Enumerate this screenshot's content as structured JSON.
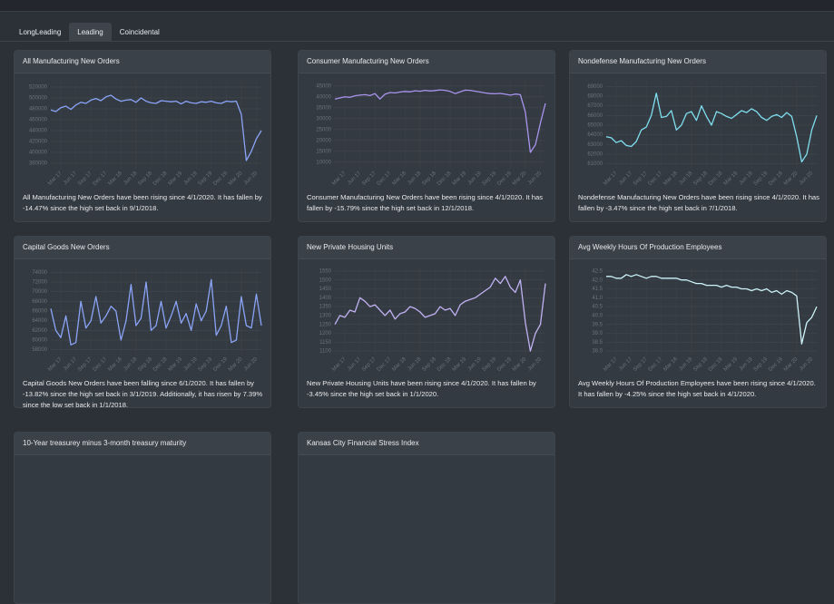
{
  "tabs": [
    "LongLeading",
    "Leading",
    "Coincidental"
  ],
  "chart_data": [
    {
      "type": "line",
      "title": "All Manufacturing New Orders",
      "color": "#8aa4f8",
      "grid": true,
      "description": "All Manufacturing New Orders have been rising since 4/1/2020. It has fallen by -14.47% since the high set back in 9/1/2018.",
      "categories": [
        null,
        null,
        "Mar 17",
        null,
        null,
        "Jun 17",
        null,
        null,
        "Sep 17",
        null,
        null,
        "Dec 17",
        null,
        null,
        "Mar 18",
        null,
        null,
        "Jun 18",
        null,
        null,
        "Sep 18",
        null,
        null,
        "Dec 18",
        null,
        null,
        "Mar 19",
        null,
        null,
        "Jun 19",
        null,
        null,
        "Sep 19",
        null,
        null,
        "Dec 19",
        null,
        null,
        "Mar 20",
        null,
        null,
        "Jun 20",
        null
      ],
      "values": [
        478000,
        475000,
        482000,
        485000,
        479000,
        487000,
        492000,
        490000,
        496000,
        499000,
        495000,
        502000,
        505000,
        498000,
        494000,
        496000,
        497000,
        492000,
        500000,
        494000,
        491000,
        490000,
        495000,
        494000,
        493000,
        494000,
        489000,
        494000,
        491000,
        490000,
        493000,
        492000,
        494000,
        491000,
        490000,
        494000,
        493000,
        494000,
        470000,
        385000,
        402000,
        425000,
        440000
      ],
      "ylim": [
        370000,
        530000
      ],
      "yticks": [
        380000,
        400000,
        420000,
        440000,
        460000,
        480000,
        500000,
        520000
      ]
    },
    {
      "type": "line",
      "title": "Consumer Manufacturing New Orders",
      "color": "#a994ee",
      "grid": true,
      "description": "Consumer Manufacturing New Orders have been rising since 4/1/2020. It has fallen by -15.79% since the high set back in 12/1/2018.",
      "categories": [
        null,
        null,
        "Mar 17",
        null,
        null,
        "Jun 17",
        null,
        null,
        "Sep 17",
        null,
        null,
        "Dec 17",
        null,
        null,
        "Mar 18",
        null,
        null,
        "Jun 18",
        null,
        null,
        "Sep 18",
        null,
        null,
        "Dec 18",
        null,
        null,
        "Mar 19",
        null,
        null,
        "Jun 19",
        null,
        null,
        "Sep 19",
        null,
        null,
        "Dec 19",
        null,
        null,
        "Mar 20",
        null,
        null,
        "Jun 20",
        null
      ],
      "values": [
        39000,
        39500,
        40000,
        39800,
        40500,
        40800,
        41000,
        40600,
        41500,
        39000,
        41200,
        42000,
        41800,
        42200,
        42500,
        42300,
        42800,
        42600,
        43000,
        42700,
        42900,
        43200,
        43000,
        42500,
        41500,
        42300,
        43100,
        43000,
        42600,
        42200,
        41800,
        41500,
        41400,
        41600,
        41200,
        40800,
        41300,
        41000,
        33000,
        14500,
        18000,
        28000,
        37000
      ],
      "ylim": [
        7000,
        47000
      ],
      "yticks": [
        10000,
        15000,
        20000,
        25000,
        30000,
        35000,
        40000,
        45000
      ]
    },
    {
      "type": "line",
      "title": "Nondefense Manufacturing New Orders",
      "color": "#7fdff0",
      "grid": true,
      "description": "Nondefense Manufacturing New Orders have been rising since 4/1/2020. It has fallen by -3.47% since the high set back in 7/1/2018.",
      "categories": [
        null,
        null,
        "Mar 17",
        null,
        null,
        "Jun 17",
        null,
        null,
        "Sep 17",
        null,
        null,
        "Dec 17",
        null,
        null,
        "Mar 18",
        null,
        null,
        "Jun 18",
        null,
        null,
        "Sep 18",
        null,
        null,
        "Dec 18",
        null,
        null,
        "Mar 19",
        null,
        null,
        "Jun 19",
        null,
        null,
        "Sep 19",
        null,
        null,
        "Dec 19",
        null,
        null,
        "Mar 20",
        null,
        null,
        "Jun 20",
        null
      ],
      "values": [
        63800,
        63700,
        63200,
        63400,
        62900,
        62800,
        63300,
        64500,
        64800,
        66000,
        68300,
        65800,
        65900,
        66500,
        64500,
        65000,
        66200,
        66400,
        65500,
        67000,
        65900,
        65000,
        66400,
        66200,
        65900,
        65700,
        66100,
        66500,
        66300,
        66700,
        66400,
        65800,
        65500,
        65900,
        66100,
        65800,
        66300,
        65900,
        63800,
        61200,
        62000,
        64500,
        66000
      ],
      "ylim": [
        60500,
        69500
      ],
      "yticks": [
        61000,
        62000,
        63000,
        64000,
        65000,
        66000,
        67000,
        68000,
        69000
      ]
    },
    {
      "type": "line",
      "title": "Capital Goods New Orders",
      "color": "#8aa4f8",
      "grid": true,
      "description": "Capital Goods New Orders have been falling since 6/1/2020. It has fallen by -13.82% since the high set back in 3/1/2019. Additionally, it has risen by 7.39% since the low set back in 1/1/2018.",
      "categories": [
        null,
        null,
        "Mar 17",
        null,
        null,
        "Jun 17",
        null,
        null,
        "Sep 17",
        null,
        null,
        "Dec 17",
        null,
        null,
        "Mar 18",
        null,
        null,
        "Jun 18",
        null,
        null,
        "Sep 18",
        null,
        null,
        "Dec 18",
        null,
        null,
        "Mar 19",
        null,
        null,
        "Jun 19",
        null,
        null,
        "Sep 19",
        null,
        null,
        "Dec 19",
        null,
        null,
        "Mar 20",
        null,
        null,
        "Jun 20",
        null
      ],
      "values": [
        66500,
        62000,
        60500,
        65000,
        59000,
        59500,
        68000,
        62500,
        64000,
        69000,
        63500,
        65000,
        67000,
        66000,
        60000,
        64000,
        71500,
        63000,
        64500,
        72000,
        62000,
        63000,
        68000,
        62500,
        65000,
        68000,
        63500,
        65500,
        62000,
        67500,
        64000,
        66000,
        72500,
        61000,
        63000,
        67000,
        59500,
        60000,
        69000,
        63000,
        62500,
        69500,
        63000
      ],
      "ylim": [
        57000,
        75000
      ],
      "yticks": [
        58000,
        60000,
        62000,
        64000,
        66000,
        68000,
        70000,
        72000,
        74000
      ]
    },
    {
      "type": "line",
      "title": "New Private Housing Units",
      "color": "#c1b2f4",
      "grid": true,
      "description": "New Private Housing Units have been rising since 4/1/2020. It has fallen by -3.45% since the high set back in 1/1/2020.",
      "categories": [
        null,
        null,
        "Mar 17",
        null,
        null,
        "Jun 17",
        null,
        null,
        "Sep 17",
        null,
        null,
        "Dec 17",
        null,
        null,
        "Mar 18",
        null,
        null,
        "Jun 18",
        null,
        null,
        "Sep 18",
        null,
        null,
        "Dec 18",
        null,
        null,
        "Mar 19",
        null,
        null,
        "Jun 19",
        null,
        null,
        "Sep 19",
        null,
        null,
        "Dec 19",
        null,
        null,
        "Mar 20",
        null,
        null,
        "Jun 20",
        null
      ],
      "values": [
        1250,
        1300,
        1290,
        1330,
        1320,
        1400,
        1380,
        1350,
        1360,
        1330,
        1300,
        1330,
        1280,
        1310,
        1320,
        1350,
        1340,
        1320,
        1290,
        1300,
        1310,
        1350,
        1330,
        1340,
        1300,
        1360,
        1380,
        1390,
        1400,
        1420,
        1440,
        1460,
        1510,
        1480,
        1520,
        1460,
        1430,
        1500,
        1260,
        1100,
        1200,
        1250,
        1480
      ],
      "ylim": [
        1080,
        1570
      ],
      "yticks": [
        1100,
        1150,
        1200,
        1250,
        1300,
        1350,
        1400,
        1450,
        1500,
        1550
      ]
    },
    {
      "type": "line",
      "title": "Avg Weekly Hours Of Production Employees",
      "color": "#cdf3fa",
      "grid": true,
      "description": "Avg Weekly Hours Of Production Employees have been rising since 4/1/2020. It has fallen by -4.25% since the high set back in 4/1/2020.",
      "categories": [
        null,
        null,
        "Mar 17",
        null,
        null,
        "Jun 17",
        null,
        null,
        "Sep 17",
        null,
        null,
        "Dec 17",
        null,
        null,
        "Mar 18",
        null,
        null,
        "Jun 18",
        null,
        null,
        "Sep 18",
        null,
        null,
        "Dec 18",
        null,
        null,
        "Mar 19",
        null,
        null,
        "Jun 19",
        null,
        null,
        "Sep 19",
        null,
        null,
        "Dec 19",
        null,
        null,
        "Mar 20",
        null,
        null,
        "Jun 20",
        null
      ],
      "values": [
        42.2,
        42.2,
        42.1,
        42.1,
        42.3,
        42.2,
        42.3,
        42.2,
        42.1,
        42.2,
        42.2,
        42.1,
        42.1,
        42.1,
        42.1,
        42.0,
        42.0,
        41.9,
        41.8,
        41.8,
        41.7,
        41.7,
        41.7,
        41.6,
        41.7,
        41.6,
        41.6,
        41.5,
        41.5,
        41.4,
        41.5,
        41.4,
        41.5,
        41.3,
        41.4,
        41.2,
        41.4,
        41.3,
        41.1,
        38.4,
        39.6,
        39.9,
        40.5
      ],
      "ylim": [
        37.8,
        42.7
      ],
      "yticks": [
        {
          "value": 38,
          "label": "38.0"
        },
        38.5,
        {
          "value": 39,
          "label": "39.0"
        },
        39.5,
        {
          "value": 40,
          "label": "40.0"
        },
        40.5,
        {
          "value": 41,
          "label": "41.0"
        },
        41.5,
        {
          "value": 42,
          "label": "42.0"
        },
        42.5
      ]
    }
  ],
  "more_panels": [
    "10-Year treasurey minus 3-month treasury maturity",
    "Kansas City Financial Stress Index"
  ]
}
